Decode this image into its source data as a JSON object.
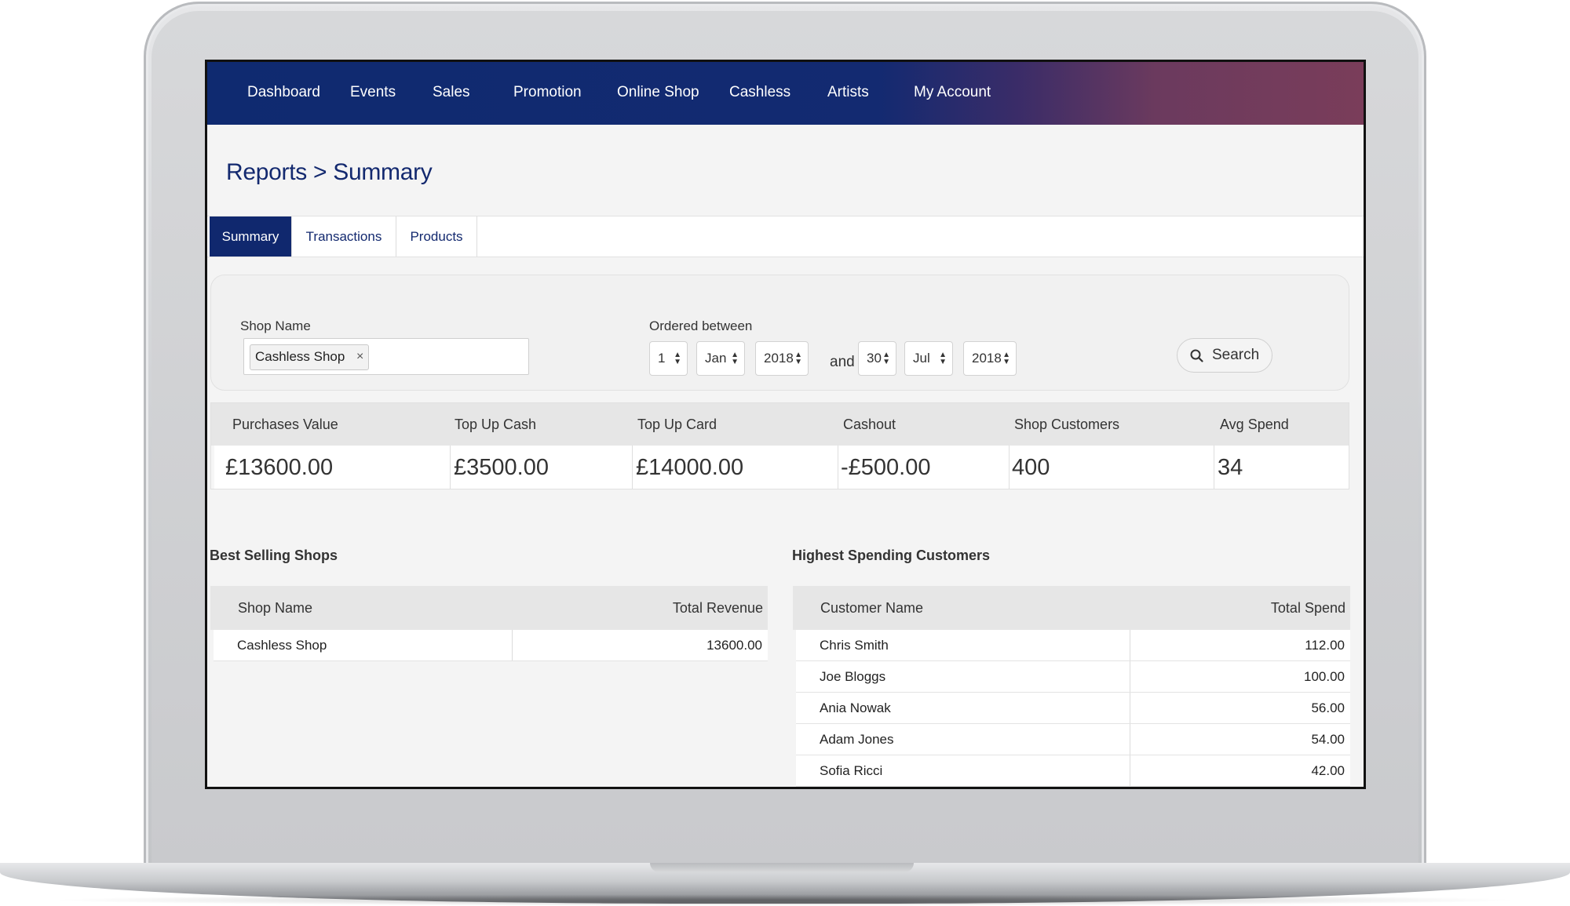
{
  "nav": {
    "items": [
      "Dashboard",
      "Events",
      "Sales",
      "Promotion",
      "Online Shop",
      "Cashless",
      "Artists",
      "My Account"
    ]
  },
  "page": {
    "title": "Reports > Summary"
  },
  "tabs": [
    "Summary",
    "Transactions",
    "Products"
  ],
  "filters": {
    "shop_label": "Shop Name",
    "shop_tag": "Cashless Shop",
    "tag_remove": "×",
    "ordered_label": "Ordered between",
    "from_day": "1",
    "from_month": "Jan",
    "from_year": "2018",
    "and_text": "and",
    "to_day": "30",
    "to_month": "Jul",
    "to_year": "2018",
    "search_label": "Search"
  },
  "stats": {
    "labels": [
      "Purchases Value",
      "Top Up Cash",
      "Top Up Card",
      "Cashout",
      "Shop Customers",
      "Avg Spend"
    ],
    "values": [
      "£13600.00",
      "£3500.00",
      "£14000.00",
      "-£500.00",
      "400",
      "34"
    ]
  },
  "best_shops": {
    "title": "Best Selling Shops",
    "headers": [
      "Shop Name",
      "Total Revenue"
    ],
    "rows": [
      [
        "Cashless Shop",
        "13600.00"
      ]
    ]
  },
  "top_customers": {
    "title": "Highest Spending Customers",
    "headers": [
      "Customer Name",
      "Total Spend"
    ],
    "rows": [
      [
        "Chris Smith",
        "112.00"
      ],
      [
        "Joe Bloggs",
        "100.00"
      ],
      [
        "Ania Nowak",
        "56.00"
      ],
      [
        "Adam Jones",
        "54.00"
      ],
      [
        "Sofia Ricci",
        "42.00"
      ]
    ]
  },
  "colors": {
    "brand_navy": "#10286e",
    "nav_end": "#7a3d5a"
  },
  "icons": {
    "search": "search-icon",
    "sort": "sort-arrows-icon"
  }
}
